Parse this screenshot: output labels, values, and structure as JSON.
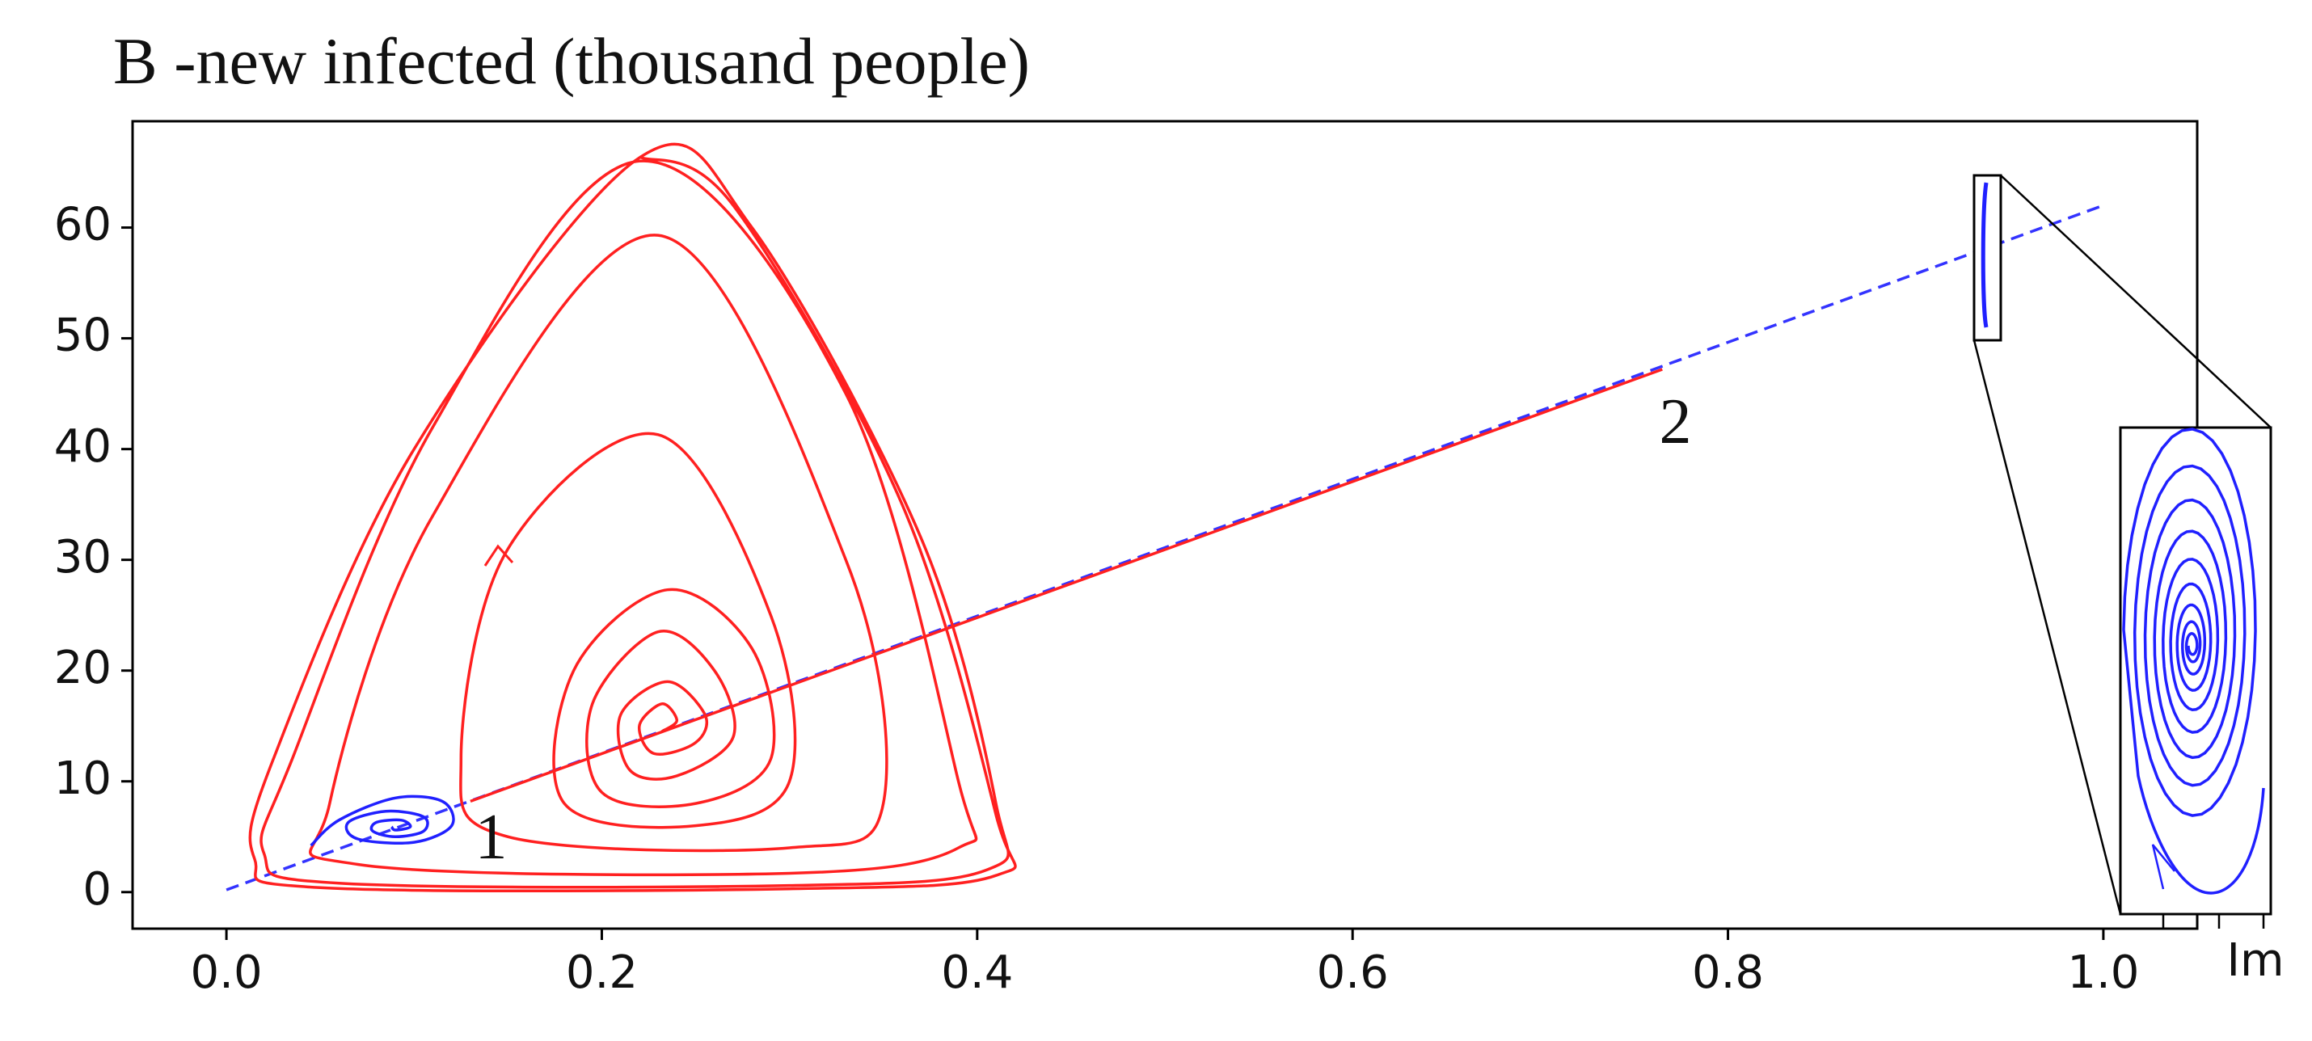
{
  "chart_data": {
    "type": "line",
    "title": "В -new infected (thousand people)",
    "xlabel": "Im",
    "xlim": [
      -0.05,
      1.05
    ],
    "ylim": [
      -3.3,
      69.6
    ],
    "xticks": [
      {
        "value": 0,
        "label": "0.0"
      },
      0.2,
      0.4,
      0.6,
      0.8,
      {
        "value": 1,
        "label": "1.0"
      }
    ],
    "yticks": [
      0,
      10,
      20,
      30,
      40,
      50,
      60
    ],
    "grid": false,
    "series": [
      {
        "color": "#3333ff",
        "dashed": true,
        "smooth": false,
        "x": [
          0,
          1.0
        ],
        "values": [
          0.2,
          62
        ]
      },
      {
        "color": "#ff2020",
        "dashed": false,
        "smooth": false,
        "x": [
          0.13,
          0.765
        ],
        "values": [
          8.2,
          47.2
        ]
      },
      {
        "color": "#ff2020",
        "dashed": false,
        "smooth": true,
        "x": [
          0.232,
          0.24,
          0.232,
          0.22,
          0.228,
          0.25,
          0.255,
          0.235,
          0.21,
          0.215,
          0.24,
          0.27,
          0.26,
          0.23,
          0.195,
          0.2,
          0.25,
          0.29,
          0.28,
          0.235,
          0.185,
          0.18,
          0.25,
          0.3,
          0.29,
          0.23,
          0.15,
          0.125,
          0.15,
          0.3,
          0.35,
          0.33,
          0.23,
          0.11,
          0.055,
          0.07,
          0.3,
          0.39,
          0.39,
          0.33,
          0.22,
          0.11,
          0.035,
          0.02,
          0.06,
          0.3,
          0.405,
          0.41,
          0.37,
          0.28,
          0.22,
          0.1,
          0.025,
          0.015,
          0.05,
          0.3,
          0.41,
          0.41,
          0.36,
          0.27,
          0.22
        ],
        "values": [
          14.5,
          15.5,
          17,
          15,
          12.5,
          13.5,
          16,
          19,
          16,
          11,
          10.5,
          14,
          20,
          23.5,
          17,
          9,
          8,
          12,
          22,
          27.3,
          20,
          8,
          6,
          10,
          25,
          41.3,
          31,
          12,
          5,
          4,
          8,
          30,
          59.3,
          34,
          8,
          2.5,
          1.7,
          4,
          10,
          45,
          66,
          42,
          12,
          3.5,
          0.8,
          0.6,
          2,
          8,
          32,
          60,
          66.3,
          40,
          12,
          3,
          0.4,
          0.3,
          1.5,
          7,
          35,
          62,
          66.4
        ]
      },
      {
        "color": "#2020ff",
        "dashed": false,
        "smooth": true,
        "x": [
          0.045,
          0.06,
          0.09,
          0.115,
          0.12,
          0.1,
          0.07,
          0.065,
          0.085,
          0.105,
          0.105,
          0.09,
          0.078,
          0.08,
          0.093,
          0.098,
          0.09,
          0.088
        ],
        "values": [
          4.2,
          6.5,
          8.5,
          8.2,
          6,
          4.5,
          4.8,
          6.3,
          7.3,
          6.8,
          5.5,
          5,
          5.5,
          6.3,
          6.5,
          5.9,
          5.6,
          5.9
        ]
      }
    ],
    "annotations": [
      {
        "text": "1",
        "x": 0.141,
        "y": 4.4
      },
      {
        "text": "2",
        "x": 0.772,
        "y": 41.9
      }
    ]
  }
}
